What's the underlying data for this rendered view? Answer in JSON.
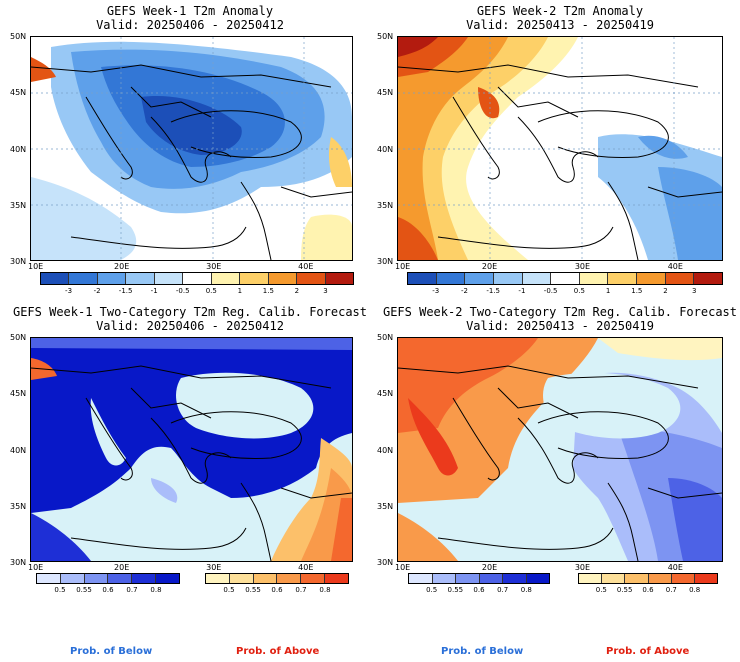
{
  "panels": [
    {
      "title": "GEFS Week-1 T2m Anomaly",
      "valid": "Valid: 20250406 - 20250412"
    },
    {
      "title": "GEFS Week-2 T2m Anomaly",
      "valid": "Valid: 20250413 - 20250419"
    },
    {
      "title": "GEFS Week-1 Two-Category T2m Reg. Calib. Forecast",
      "valid": "Valid: 20250406 - 20250412"
    },
    {
      "title": "GEFS Week-2 Two-Category T2m Reg. Calib. Forecast",
      "valid": "Valid: 20250413 - 20250419"
    }
  ],
  "lat_labels": [
    "50N",
    "45N",
    "40N",
    "35N",
    "30N"
  ],
  "lon_labels": [
    "10E",
    "20E",
    "30E",
    "40E"
  ],
  "anomaly_scale": {
    "labels": [
      "-3",
      "-2",
      "-1.5",
      "-1",
      "-0.5",
      "0.5",
      "1",
      "1.5",
      "2",
      "3"
    ],
    "colors": [
      "#1c4fb8",
      "#3377d6",
      "#5ea0ea",
      "#98c8f5",
      "#c6e3fa",
      "#ffffff",
      "#fff3b0",
      "#fdd068",
      "#f59a2e",
      "#e35414",
      "#b31b0f"
    ]
  },
  "below_scale": {
    "labels": [
      "0.5",
      "0.55",
      "0.6",
      "0.7",
      "0.8"
    ],
    "colors": [
      "#dde7ff",
      "#aabdfa",
      "#7d94f2",
      "#4d62e6",
      "#1e2fd6",
      "#0818c8"
    ]
  },
  "above_scale": {
    "labels": [
      "0.5",
      "0.55",
      "0.6",
      "0.7",
      "0.8"
    ],
    "colors": [
      "#fff4c0",
      "#fde09a",
      "#fcc06a",
      "#f99a4a",
      "#f4682e",
      "#eb3a1c"
    ]
  },
  "prob_labels": {
    "below": "Prob. of Below",
    "above": "Prob. of Above",
    "below_color": "#2a6fd8",
    "above_color": "#e02010"
  },
  "colors": {
    "sea_light": "#d8f2f8",
    "land_white": "#ffffff",
    "border": "#000000"
  }
}
